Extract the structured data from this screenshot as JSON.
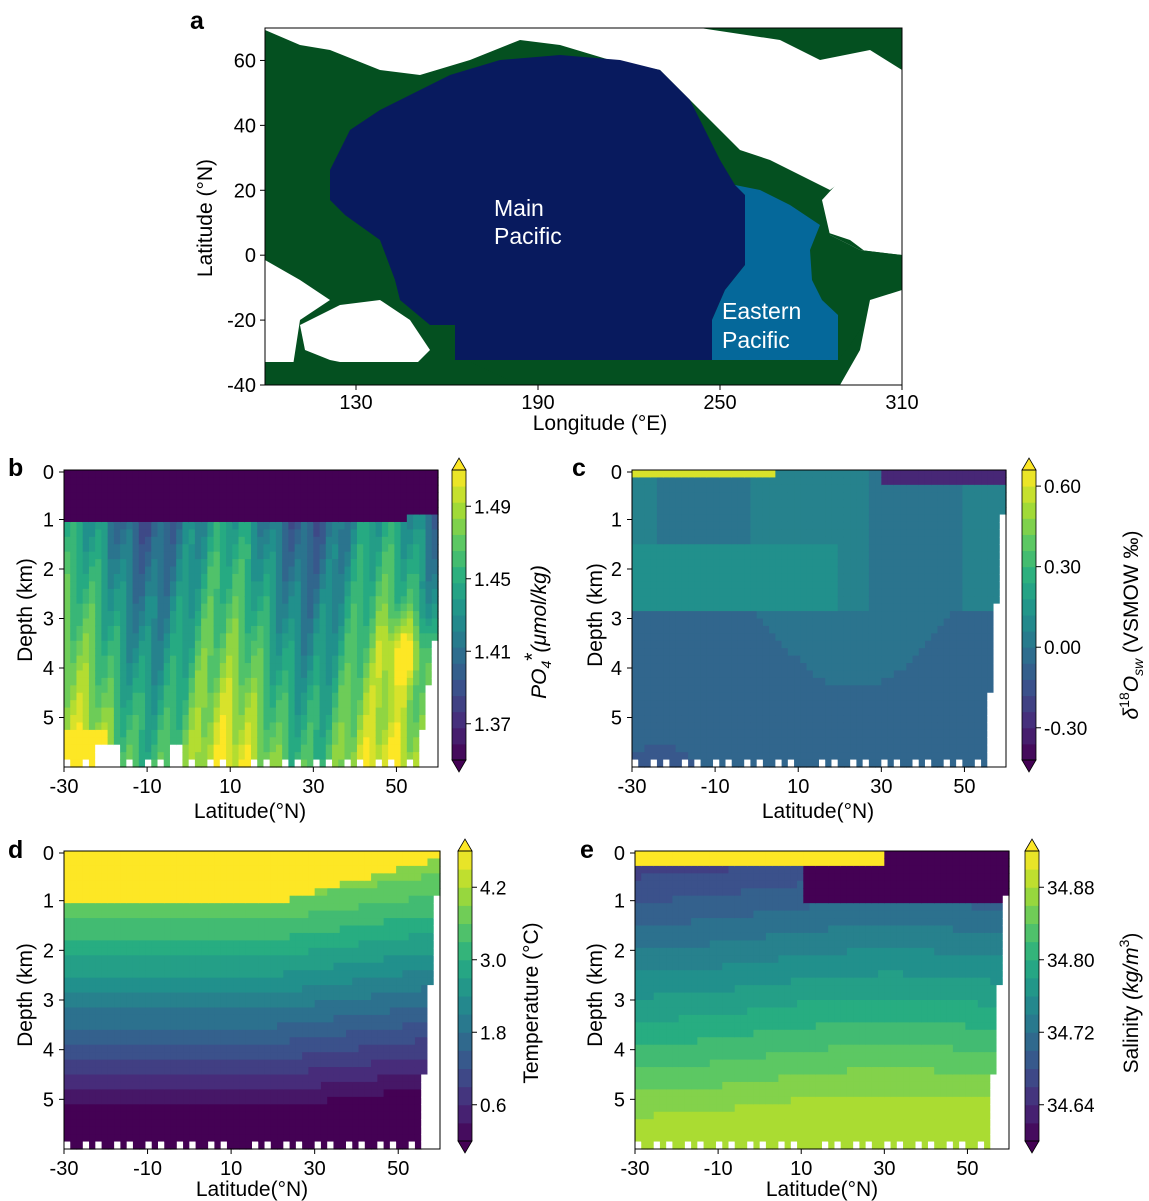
{
  "figure": {
    "panels": [
      {
        "id": "a",
        "label": "a",
        "type": "map",
        "xlabel": "Longitude (°E)",
        "ylabel": "Latitude (°N)",
        "xticks": [
          "130",
          "190",
          "250",
          "310"
        ],
        "yticks": [
          "60",
          "40",
          "20",
          "0",
          "-20",
          "-40"
        ],
        "xlim": [
          100,
          310
        ],
        "ylim": [
          -40,
          70
        ],
        "regions": [
          {
            "name": "Main Pacific",
            "lines": [
              "Main",
              "Pacific"
            ],
            "color": "#081a5e"
          },
          {
            "name": "Eastern Pacific",
            "lines": [
              "Eastern",
              "Pacific"
            ],
            "color": "#05689a"
          }
        ],
        "land_color": "#045020",
        "ocean_other_color": "#ffffff"
      },
      {
        "id": "b",
        "label": "b",
        "type": "heatmap",
        "xlabel": "Latitude(°N)",
        "ylabel": "Depth (km)",
        "xticks": [
          "-30",
          "-10",
          "10",
          "30",
          "50"
        ],
        "yticks": [
          "0",
          "1",
          "2",
          "3",
          "4",
          "5"
        ],
        "colorbar": {
          "label_plain": "PO",
          "label_sub": "4",
          "label_sup": "*",
          "label_tail": "(μmol/kg)",
          "ticks": [
            "1.49",
            "1.45",
            "1.41",
            "1.37"
          ],
          "min": 1.35,
          "max": 1.51
        }
      },
      {
        "id": "c",
        "label": "c",
        "type": "heatmap",
        "xlabel": "Latitude(°N)",
        "ylabel": "Depth (km)",
        "xticks": [
          "-30",
          "-10",
          "10",
          "30",
          "50"
        ],
        "yticks": [
          "0",
          "1",
          "2",
          "3",
          "4",
          "5"
        ],
        "colorbar": {
          "label_plain": "δ",
          "label_sup": "18",
          "label_mid": "O",
          "label_sub": "sw",
          "label_tail": " (VSMOW ‰)",
          "ticks": [
            "0.60",
            "0.30",
            "0.00",
            "-0.30"
          ],
          "min": -0.42,
          "max": 0.66
        }
      },
      {
        "id": "d",
        "label": "d",
        "type": "heatmap",
        "xlabel": "Latitude(°N)",
        "ylabel": "Depth (km)",
        "xticks": [
          "-30",
          "-10",
          "10",
          "30",
          "50"
        ],
        "yticks": [
          "0",
          "1",
          "2",
          "3",
          "4",
          "5"
        ],
        "colorbar": {
          "label_plain": "Temperature (°C)",
          "ticks": [
            "4.2",
            "3.0",
            "1.8",
            "0.6"
          ],
          "min": 0.0,
          "max": 4.8
        }
      },
      {
        "id": "e",
        "label": "e",
        "type": "heatmap",
        "xlabel": "Latitude(°N)",
        "ylabel": "Depth (km)",
        "xticks": [
          "-30",
          "-10",
          "10",
          "30",
          "50"
        ],
        "yticks": [
          "0",
          "1",
          "2",
          "3",
          "4",
          "5"
        ],
        "colorbar": {
          "label_plain": "Salinity ",
          "label_tail": "(kg/m",
          "label_sup": "3",
          "label_end": ")",
          "ticks": [
            "34.88",
            "34.80",
            "34.72",
            "34.64"
          ],
          "min": 34.6,
          "max": 34.92
        }
      }
    ]
  },
  "chart_data": [
    {
      "type": "heatmap",
      "panel": "b",
      "x_range": [
        -30,
        60
      ],
      "y_range": [
        0,
        6
      ],
      "xlabel": "Latitude(°N)",
      "ylabel": "Depth (km)",
      "colorbar_ticks": [
        1.49,
        1.45,
        1.41,
        1.37
      ],
      "colorbar_range": [
        1.35,
        1.51
      ],
      "levels": 18
    },
    {
      "type": "heatmap",
      "panel": "c",
      "x_range": [
        -30,
        60
      ],
      "y_range": [
        0,
        6
      ],
      "xlabel": "Latitude(°N)",
      "ylabel": "Depth (km)",
      "colorbar_ticks": [
        0.6,
        0.3,
        0.0,
        -0.3
      ],
      "colorbar_range": [
        -0.42,
        0.66
      ],
      "levels": 18
    },
    {
      "type": "heatmap",
      "panel": "d",
      "x_range": [
        -30,
        60
      ],
      "y_range": [
        0,
        6
      ],
      "xlabel": "Latitude(°N)",
      "ylabel": "Depth (km)",
      "colorbar_ticks": [
        4.2,
        3.0,
        1.8,
        0.6
      ],
      "colorbar_range": [
        0.0,
        4.8
      ],
      "levels": 16
    },
    {
      "type": "heatmap",
      "panel": "e",
      "x_range": [
        -30,
        60
      ],
      "y_range": [
        0,
        6
      ],
      "xlabel": "Latitude(°N)",
      "ylabel": "Depth (km)",
      "colorbar_ticks": [
        34.88,
        34.8,
        34.72,
        34.64
      ],
      "colorbar_range": [
        34.6,
        34.92
      ],
      "levels": 16
    }
  ]
}
